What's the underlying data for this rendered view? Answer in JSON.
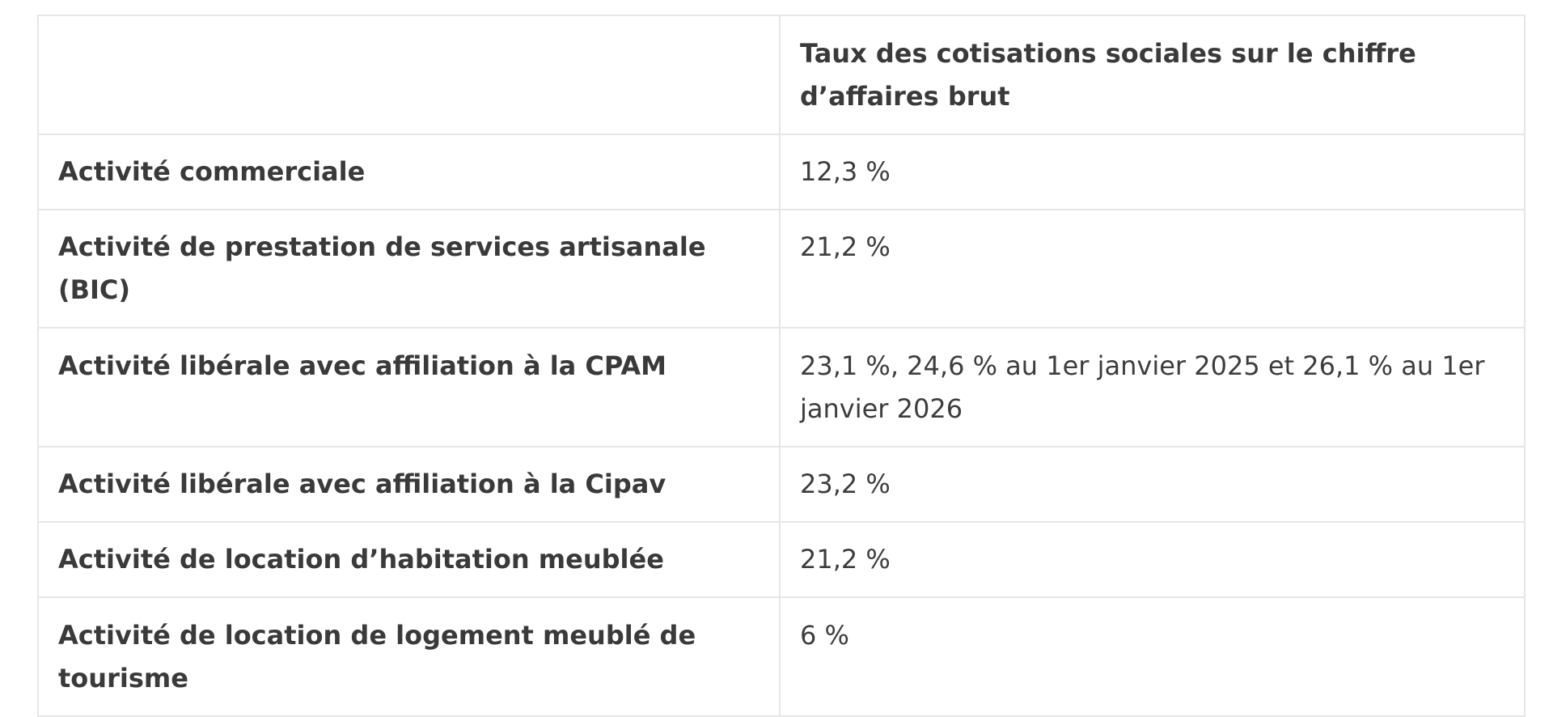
{
  "table": {
    "header": {
      "corner": "",
      "rate_column": "Taux des cotisations sociales sur le chiffre d’affaires brut"
    },
    "rows": [
      {
        "activity": "Activité commerciale",
        "rate": "12,3 %"
      },
      {
        "activity": "Activité de prestation de services artisanale (BIC)",
        "rate": "21,2 %"
      },
      {
        "activity": "Activité libérale avec affiliation à la CPAM",
        "rate": "23,1 %, 24,6 % au 1er janvier 2025 et 26,1 % au 1er janvier 2026"
      },
      {
        "activity": "Activité libérale avec affiliation à la Cipav",
        "rate": "23,2 %"
      },
      {
        "activity": "Activité de location d’habitation meublée",
        "rate": "21,2 %"
      },
      {
        "activity": "Activité de location de logement meublé de tourisme",
        "rate": "6 %"
      }
    ]
  }
}
